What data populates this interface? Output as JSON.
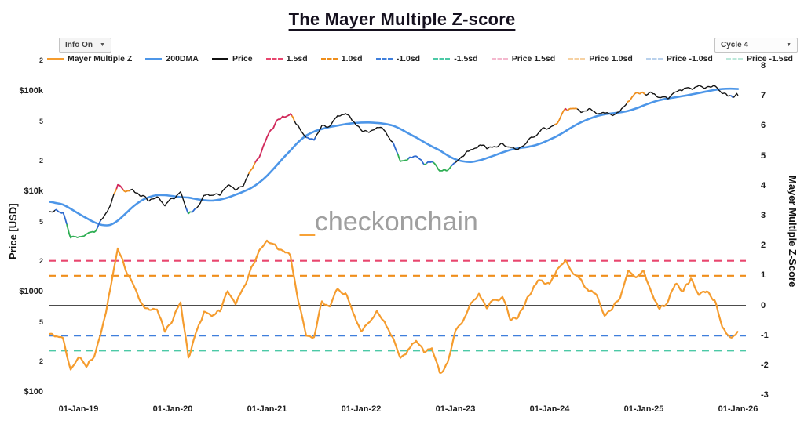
{
  "title": "The Mayer Multiple Z-score",
  "controls": {
    "info_toggle": "Info On",
    "cycle_select": "Cycle 4",
    "caret": "▼"
  },
  "watermark": {
    "underscore": "_",
    "text": "checkonchain"
  },
  "axes": {
    "left": {
      "title": "Price [USD]"
    },
    "right": {
      "title": "Mayer Multiple Z-Score"
    }
  },
  "legend": [
    {
      "label": "Mayer Multiple Z",
      "color": "#f59c2e",
      "dash": false,
      "weight": 3
    },
    {
      "label": "200DMA",
      "color": "#4d96e8",
      "dash": false,
      "weight": 3
    },
    {
      "label": "Price",
      "color": "#111111",
      "dash": false,
      "weight": 2
    },
    {
      "label": "1.5sd",
      "color": "#e8466e",
      "dash": true,
      "weight": 3
    },
    {
      "label": "1.0sd",
      "color": "#ef8e1b",
      "dash": true,
      "weight": 3
    },
    {
      "label": "-1.0sd",
      "color": "#3f7fdc",
      "dash": true,
      "weight": 3
    },
    {
      "label": "-1.5sd",
      "color": "#4cc9a6",
      "dash": true,
      "weight": 3
    },
    {
      "label": "Price 1.5sd",
      "color": "#f4b8ce",
      "dash": true,
      "weight": 3
    },
    {
      "label": "Price 1.0sd",
      "color": "#f6d1a2",
      "dash": true,
      "weight": 3
    },
    {
      "label": "Price -1.0sd",
      "color": "#b9d1ec",
      "dash": true,
      "weight": 3
    },
    {
      "label": "Price -1.5sd",
      "color": "#bce8da",
      "dash": true,
      "weight": 3
    }
  ],
  "chart_data": {
    "type": "line",
    "title": "The Mayer Multiple Z-score",
    "x_ticks": [
      {
        "label": "01-Jan-19",
        "year": 2019
      },
      {
        "label": "01-Jan-20",
        "year": 2020
      },
      {
        "label": "01-Jan-21",
        "year": 2021
      },
      {
        "label": "01-Jan-22",
        "year": 2022
      },
      {
        "label": "01-Jan-23",
        "year": 2023
      },
      {
        "label": "01-Jan-24",
        "year": 2024
      },
      {
        "label": "01-Jan-25",
        "year": 2025
      },
      {
        "label": "01-Jan-26",
        "year": 2026
      }
    ],
    "y_left": {
      "label": "Price [USD]",
      "scale": "log",
      "range_usd": [
        100,
        250000
      ],
      "major_ticks": [
        {
          "label": "$100k",
          "usd": 100000
        },
        {
          "label": "$10k",
          "usd": 10000
        },
        {
          "label": "$1000",
          "usd": 1000
        },
        {
          "label": "$100",
          "usd": 100
        }
      ],
      "minor_ticks": [
        {
          "label": "2",
          "usd": 200000
        },
        {
          "label": "5",
          "usd": 50000
        },
        {
          "label": "2",
          "usd": 20000
        },
        {
          "label": "5",
          "usd": 5000
        },
        {
          "label": "2",
          "usd": 2000
        },
        {
          "label": "5",
          "usd": 500
        },
        {
          "label": "2",
          "usd": 200
        }
      ]
    },
    "y_right": {
      "label": "Mayer Multiple Z-Score",
      "range": [
        -3,
        8
      ],
      "ticks": [
        8,
        7,
        6,
        5,
        4,
        3,
        2,
        1,
        0,
        -1,
        -2,
        -3
      ]
    },
    "reference_lines": [
      {
        "name": "1.5sd",
        "z": 1.5,
        "color": "#e8466e",
        "dash": true
      },
      {
        "name": "1.0sd",
        "z": 1.0,
        "color": "#ef8e1b",
        "dash": true
      },
      {
        "name": "zero",
        "z": 0.0,
        "color": "#111111",
        "dash": false
      },
      {
        "name": "-1.0sd",
        "z": -1.0,
        "color": "#3f7fdc",
        "dash": true
      },
      {
        "name": "-1.5sd",
        "z": -1.5,
        "color": "#4cc9a6",
        "dash": true
      }
    ],
    "heat_bands": {
      "above_1_5": "#d1295b",
      "above_1_0": "#ee8f1f",
      "below_neg1_0": "#2f6bcf",
      "below_neg1_5": "#2fae54",
      "default": "#141414"
    },
    "months": [
      "2018-09",
      "2018-10",
      "2018-11",
      "2018-12",
      "2019-01",
      "2019-02",
      "2019-03",
      "2019-04",
      "2019-05",
      "2019-06",
      "2019-07",
      "2019-08",
      "2019-09",
      "2019-10",
      "2019-11",
      "2019-12",
      "2020-01",
      "2020-02",
      "2020-03",
      "2020-04",
      "2020-05",
      "2020-06",
      "2020-07",
      "2020-08",
      "2020-09",
      "2020-10",
      "2020-11",
      "2020-12",
      "2021-01",
      "2021-02",
      "2021-03",
      "2021-04",
      "2021-05",
      "2021-06",
      "2021-07",
      "2021-08",
      "2021-09",
      "2021-10",
      "2021-11",
      "2021-12",
      "2022-01",
      "2022-02",
      "2022-03",
      "2022-04",
      "2022-05",
      "2022-06",
      "2022-07",
      "2022-08",
      "2022-09",
      "2022-10",
      "2022-11",
      "2022-12",
      "2023-01",
      "2023-02",
      "2023-03",
      "2023-04",
      "2023-05",
      "2023-06",
      "2023-07",
      "2023-08",
      "2023-09",
      "2023-10",
      "2023-11",
      "2023-12",
      "2024-01",
      "2024-02",
      "2024-03",
      "2024-04",
      "2024-05",
      "2024-06",
      "2024-07",
      "2024-08",
      "2024-09",
      "2024-10",
      "2024-11",
      "2024-12",
      "2025-01",
      "2025-02",
      "2025-03",
      "2025-04",
      "2025-05",
      "2025-06",
      "2025-07",
      "2025-08",
      "2025-09",
      "2025-10",
      "2025-11",
      "2025-12",
      "2026-01"
    ],
    "series": [
      {
        "name": "Price",
        "axis": "price_usd",
        "color": "#141414",
        "heat_colored": true,
        "values": [
          6500,
          6500,
          6300,
          3500,
          3600,
          3650,
          3950,
          5200,
          7200,
          11800,
          10600,
          10300,
          9200,
          8300,
          9100,
          7300,
          8500,
          9800,
          6000,
          7000,
          9300,
          9500,
          9700,
          11700,
          10600,
          12000,
          16500,
          22000,
          35000,
          48000,
          57000,
          60000,
          45000,
          35000,
          33000,
          46000,
          45000,
          57000,
          64000,
          49000,
          41000,
          40000,
          44000,
          41000,
          31500,
          21000,
          21500,
          23000,
          19500,
          19800,
          16800,
          16800,
          20000,
          23200,
          26500,
          29000,
          27300,
          28300,
          30000,
          27800,
          26300,
          30500,
          36500,
          42500,
          43000,
          50000,
          66500,
          65500,
          63500,
          66000,
          60500,
          60000,
          59500,
          64500,
          80000,
          97500,
          99000,
          96000,
          86000,
          84500,
          100500,
          105500,
          109500,
          115500,
          110500,
          116000,
          99000,
          90000,
          91500
        ]
      },
      {
        "name": "200DMA",
        "axis": "price_usd",
        "color": "#4d96e8",
        "values": [
          8100,
          7800,
          7500,
          6800,
          6100,
          5500,
          5000,
          4700,
          4700,
          5200,
          6100,
          7200,
          8200,
          8900,
          9300,
          9300,
          9100,
          8900,
          8800,
          8500,
          8300,
          8200,
          8400,
          8800,
          9400,
          10100,
          11000,
          12400,
          14500,
          17600,
          21500,
          26000,
          31500,
          36500,
          40000,
          42500,
          44500,
          46000,
          47500,
          48500,
          49200,
          49300,
          48800,
          47800,
          46000,
          42500,
          38500,
          35000,
          31500,
          28500,
          26000,
          23200,
          21200,
          20200,
          19900,
          20600,
          21800,
          23200,
          24800,
          26300,
          27300,
          28000,
          29000,
          30800,
          33300,
          36300,
          40300,
          45000,
          49500,
          53500,
          57000,
          59500,
          61000,
          62300,
          64300,
          68000,
          73000,
          78000,
          82300,
          85300,
          87800,
          90500,
          93500,
          97000,
          100500,
          104000,
          106300,
          107000,
          106300
        ]
      },
      {
        "name": "Mayer Multiple Z",
        "axis": "z_score",
        "color": "#f59c2e",
        "values": [
          -0.95,
          -1.0,
          -1.1,
          -2.1,
          -1.75,
          -2.0,
          -1.7,
          -0.8,
          0.5,
          1.95,
          1.2,
          0.7,
          0.1,
          -0.2,
          -0.1,
          -0.8,
          -0.5,
          0.1,
          -1.75,
          -0.9,
          -0.2,
          -0.3,
          -0.2,
          0.5,
          0.1,
          0.5,
          1.3,
          1.85,
          2.15,
          2.05,
          1.85,
          1.65,
          0.2,
          -1.05,
          -1.0,
          0.1,
          -0.05,
          0.55,
          0.45,
          -0.25,
          -0.8,
          -0.6,
          -0.2,
          -0.5,
          -1.05,
          -1.8,
          -1.45,
          -1.2,
          -1.55,
          -1.4,
          -2.25,
          -1.9,
          -0.9,
          -0.5,
          0.1,
          0.4,
          0.0,
          0.2,
          0.25,
          -0.4,
          -0.35,
          0.2,
          0.7,
          0.9,
          0.7,
          1.2,
          1.5,
          1.1,
          0.85,
          0.5,
          0.35,
          -0.25,
          -0.1,
          0.3,
          1.2,
          1.05,
          1.1,
          0.4,
          -0.1,
          0.15,
          0.7,
          0.5,
          0.9,
          0.35,
          0.5,
          0.2,
          -0.7,
          -1.05,
          -0.85
        ]
      }
    ]
  }
}
